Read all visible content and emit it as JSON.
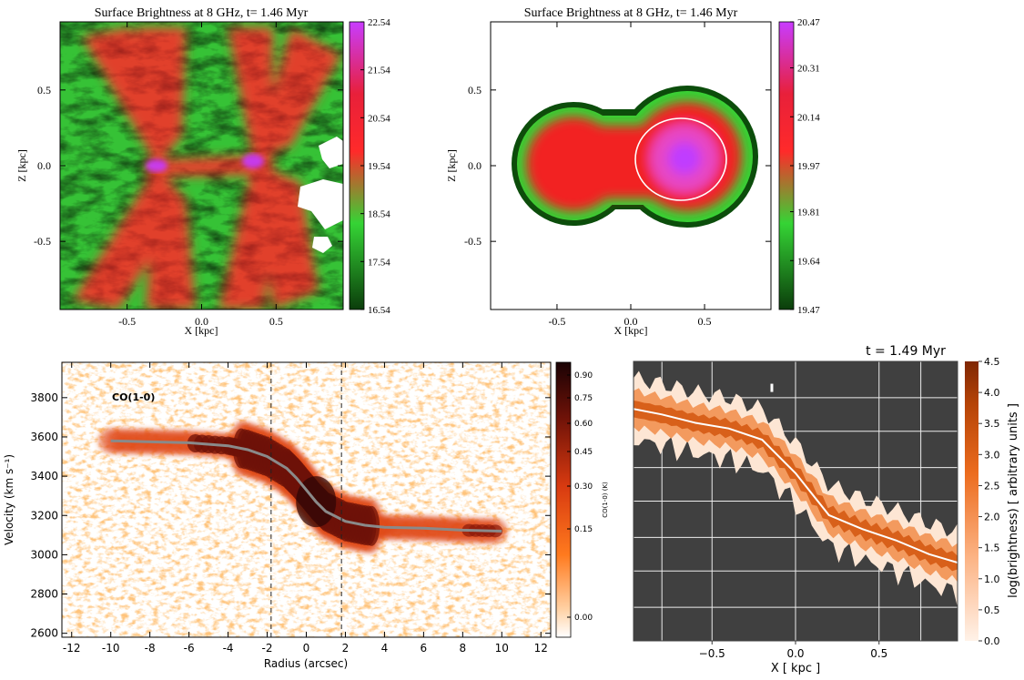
{
  "chart_data": [
    {
      "type": "heatmap",
      "title": "Surface Brightness at 8 GHz, t= 1.46 Myr",
      "xlabel": "X [kpc]",
      "ylabel": "Z [kpc]",
      "xlim": [
        -0.95,
        0.95
      ],
      "ylim": [
        -0.95,
        0.95
      ],
      "x_ticks": [
        -0.5,
        0.0,
        0.5
      ],
      "x_tick_labels": [
        "-0.5",
        "0.0",
        "0.5"
      ],
      "y_ticks": [
        -0.5,
        0.0,
        0.5
      ],
      "y_tick_labels": [
        "-0.5",
        "0.0",
        "0.5"
      ],
      "colorbar": {
        "min": 16.54,
        "max": 22.54,
        "tick_labels": [
          "22.54",
          "21.54",
          "20.54",
          "19.54",
          "18.54",
          "17.54",
          "16.54"
        ],
        "ticks": [
          22.54,
          21.54,
          20.54,
          19.54,
          18.54,
          17.54,
          16.54
        ]
      },
      "colormap": [
        "#0b4d0b",
        "#35d435",
        "#ff2a2a",
        "#c83cff"
      ],
      "features": {
        "lobes": [
          {
            "x": -0.3,
            "z": 0.0
          },
          {
            "x": 0.35,
            "z": 0.05
          }
        ],
        "peak_value": 22.54
      }
    },
    {
      "type": "heatmap",
      "title": "Surface Brightness at 8 GHz, t= 1.46 Myr",
      "xlabel": "X [kpc]",
      "ylabel": "Z [kpc]",
      "xlim": [
        -0.95,
        0.95
      ],
      "ylim": [
        -0.95,
        0.95
      ],
      "x_ticks": [
        -0.5,
        0.0,
        0.5
      ],
      "x_tick_labels": [
        "-0.5",
        "0.0",
        "0.5"
      ],
      "y_ticks": [
        -0.5,
        0.0,
        0.5
      ],
      "y_tick_labels": [
        "-0.5",
        "0.0",
        "0.5"
      ],
      "colorbar": {
        "min": 19.47,
        "max": 20.47,
        "tick_labels": [
          "20.47",
          "20.31",
          "20.14",
          "19.97",
          "19.81",
          "19.64",
          "19.47"
        ],
        "ticks": [
          20.47,
          20.31,
          20.14,
          19.97,
          19.81,
          19.64,
          19.47
        ]
      },
      "colormap": [
        "#0b4d0b",
        "#35d435",
        "#ff2a2a",
        "#c83cff"
      ],
      "features": {
        "blobs": [
          {
            "x": -0.35,
            "z": 0.0,
            "r": 0.38
          },
          {
            "x": 0.35,
            "z": 0.05,
            "r": 0.45
          }
        ],
        "peak": {
          "x": 0.35,
          "z": 0.05
        },
        "contour_circle": {
          "x": 0.35,
          "z": 0.05,
          "r": 0.3
        }
      }
    },
    {
      "type": "heatmap",
      "annotation": "CO(1-0)",
      "xlabel": "Radius (arcsec)",
      "ylabel": "Velocity (km s⁻¹)",
      "xlim": [
        -12.5,
        12.5
      ],
      "ylim": [
        2580,
        3980
      ],
      "x_ticks": [
        -12,
        -10,
        -8,
        -6,
        -4,
        -2,
        0,
        2,
        4,
        6,
        8,
        10,
        12
      ],
      "x_tick_labels": [
        "-12",
        "-10",
        "-8",
        "-6",
        "-4",
        "-2",
        "0",
        "2",
        "4",
        "6",
        "8",
        "10",
        "12"
      ],
      "y_ticks": [
        2600,
        2800,
        3000,
        3200,
        3400,
        3600,
        3800
      ],
      "y_tick_labels": [
        "2600",
        "2800",
        "3000",
        "3200",
        "3400",
        "3600",
        "3800"
      ],
      "dashed_vlines": [
        -1.8,
        1.8
      ],
      "colorbar": {
        "label": "CO(1-0) (K)",
        "ticks": [
          0.0,
          0.15,
          0.3,
          0.45,
          0.6,
          0.75,
          0.9
        ],
        "tick_labels": [
          "0.00",
          "0.15",
          "0.30",
          "0.45",
          "0.60",
          "0.75",
          "0.90"
        ]
      },
      "colormap": [
        "#ffffff",
        "#ff8a2a",
        "#ff4500",
        "#9b1a10",
        "#3a0508"
      ],
      "rotation_curve": {
        "x": [
          -10,
          -8,
          -6,
          -4,
          -3,
          -2,
          -1,
          -0.5,
          0,
          0.5,
          1,
          2,
          3,
          4,
          6,
          8,
          10
        ],
        "y": [
          3580,
          3575,
          3570,
          3555,
          3535,
          3500,
          3440,
          3390,
          3330,
          3270,
          3220,
          3170,
          3150,
          3140,
          3135,
          3125,
          3120
        ]
      }
    },
    {
      "type": "heatmap",
      "title": "t = 1.49 Myr",
      "xlabel": "X [ kpc ]",
      "ylabel": "log(brightness) [ arbitrary units ]",
      "xlim": [
        -0.97,
        0.97
      ],
      "x_ticks": [
        -0.5,
        0.0,
        0.5
      ],
      "x_tick_labels": [
        "−0.5",
        "0.0",
        "0.5"
      ],
      "colorbar": {
        "min": 0.0,
        "max": 4.5,
        "ticks": [
          0.0,
          0.5,
          1.0,
          1.5,
          2.0,
          2.5,
          3.0,
          3.5,
          4.0,
          4.5
        ],
        "tick_labels": [
          "0.0",
          "0.5",
          "1.0",
          "1.5",
          "2.0",
          "2.5",
          "3.0",
          "3.5",
          "4.0",
          "4.5"
        ]
      },
      "colormap": [
        "#fff0e6",
        "#fcae7d",
        "#e8621c",
        "#a13a06",
        "#7f2704"
      ],
      "background": "#404040",
      "grid": true,
      "ridge_line": {
        "x": [
          -0.97,
          -0.8,
          -0.6,
          -0.4,
          -0.2,
          0.0,
          0.2,
          0.4,
          0.6,
          0.8,
          0.97
        ],
        "y": [
          0.83,
          0.81,
          0.78,
          0.76,
          0.72,
          0.6,
          0.45,
          0.4,
          0.36,
          0.31,
          0.28
        ]
      }
    }
  ]
}
